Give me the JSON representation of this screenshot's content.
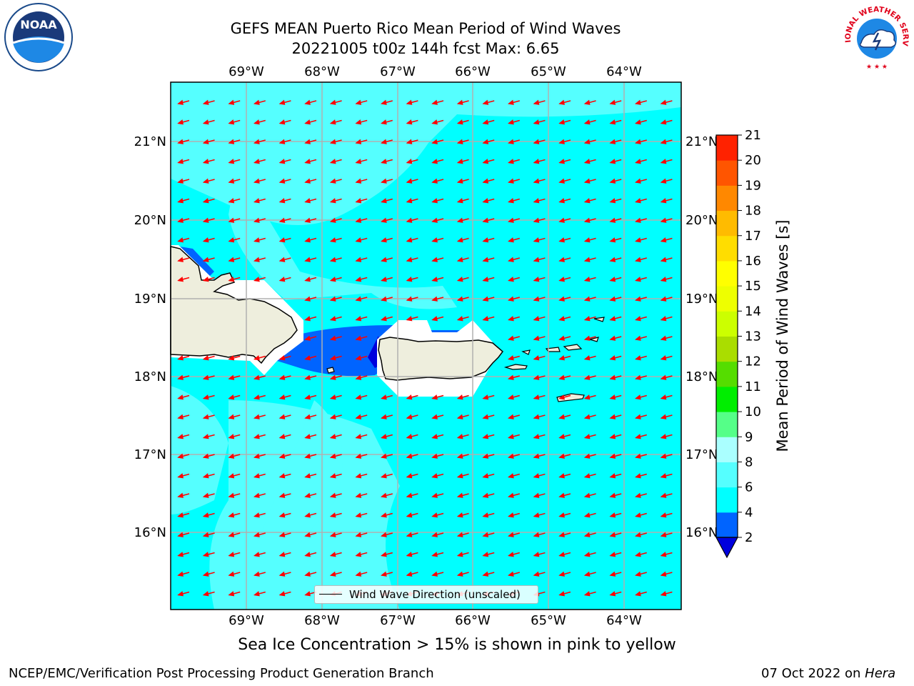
{
  "header": {
    "title_line1": "GEFS MEAN Puerto Rico Mean Period of Wind Waves",
    "title_line2": "20221005 t00z 144h fcst   Max: 6.65"
  },
  "map": {
    "lon_labels": [
      "69°W",
      "68°W",
      "67°W",
      "66°W",
      "65°W",
      "64°W"
    ],
    "lat_labels": [
      "21°N",
      "20°N",
      "19°N",
      "18°N",
      "17°N",
      "16°N"
    ],
    "ocean_color": "#00ffff",
    "land_color": "#eeeedd",
    "arrow_color": "#ff0000",
    "arrow_direction": "toward west-southwest"
  },
  "legend": {
    "label": "Wind Wave Direction (unscaled)"
  },
  "colorbar": {
    "label": "Mean Period of Wind Waves [s]",
    "ticks": [
      "2",
      "4",
      "6",
      "8",
      "9",
      "10",
      "11",
      "12",
      "13",
      "14",
      "15",
      "16",
      "17",
      "18",
      "19",
      "20",
      "21"
    ],
    "colors": [
      "#0064ff",
      "#00ffff",
      "#55ffff",
      "#aaffff",
      "#55ff88",
      "#00ee00",
      "#55dd00",
      "#aadd00",
      "#ccff00",
      "#eeff00",
      "#ffff00",
      "#ffdd00",
      "#ffbb00",
      "#ff8800",
      "#ff5500",
      "#ff2200"
    ],
    "extend_color": "#0000dd"
  },
  "subtitle": "Sea Ice Concentration > 15% is shown in pink to yellow",
  "footer": {
    "left": "NCEP/EMC/Verification Post Processing Product Generation Branch",
    "date": "07 Oct 2022 on ",
    "machine": "Hera"
  },
  "logos": {
    "noaa_text": "NOAA",
    "nws_text": "NATIONAL WEATHER SERVICE"
  }
}
